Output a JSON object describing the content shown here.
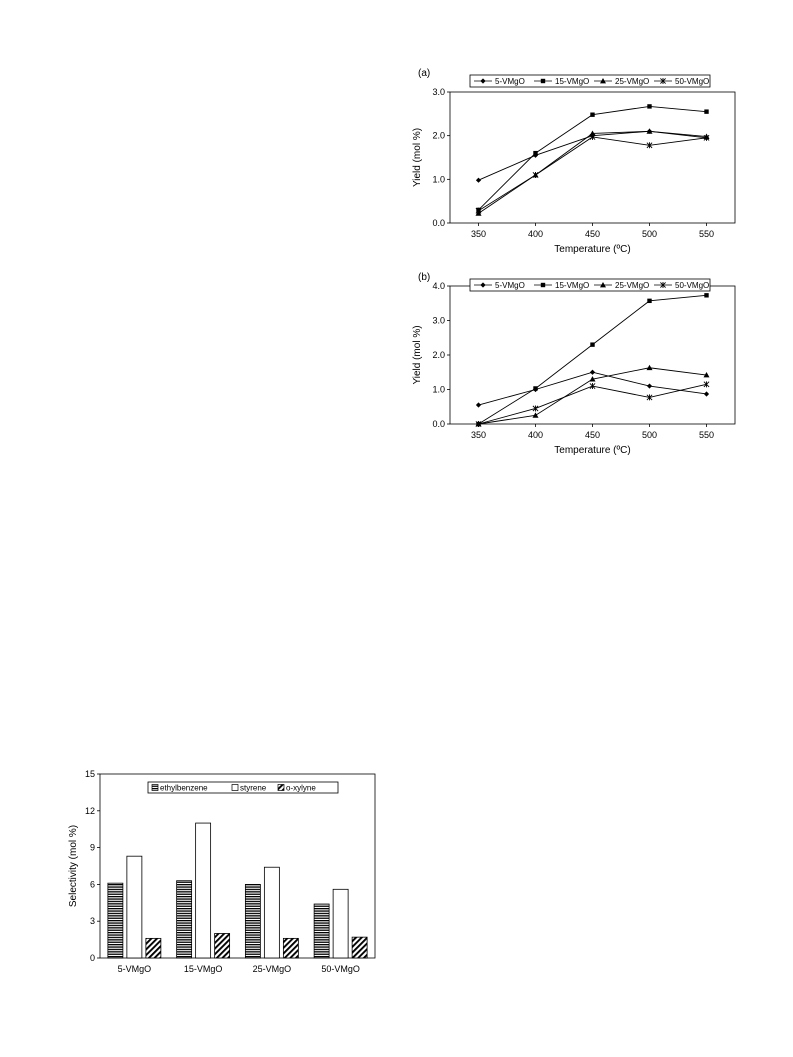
{
  "chart_data": [
    {
      "type": "line",
      "panel_label": "(a)",
      "xlabel": "Temperature (ºC)",
      "ylabel": "Yield (mol %)",
      "x": [
        350,
        400,
        450,
        500,
        550
      ],
      "x_ticks": [
        "350",
        "400",
        "450",
        "500",
        "550"
      ],
      "y_ticks": [
        "0.0",
        "1.0",
        "2.0",
        "3.0"
      ],
      "ylim": [
        0,
        3.0
      ],
      "legend_position": "top",
      "series": [
        {
          "name": "5-VMgO",
          "marker": "diamond",
          "values": [
            0.98,
            1.55,
            2.0,
            2.1,
            1.95
          ]
        },
        {
          "name": "15-VMgO",
          "marker": "square",
          "values": [
            0.3,
            1.6,
            2.48,
            2.67,
            2.55
          ]
        },
        {
          "name": "25-VMgO",
          "marker": "triangle",
          "values": [
            0.22,
            1.1,
            2.05,
            2.1,
            1.98
          ]
        },
        {
          "name": "50-VMgO",
          "marker": "star",
          "values": [
            0.28,
            1.1,
            1.97,
            1.78,
            1.95
          ]
        }
      ]
    },
    {
      "type": "line",
      "panel_label": "(b)",
      "xlabel": "Temperature (ºC)",
      "ylabel": "Yield (mol %)",
      "x": [
        350,
        400,
        450,
        500,
        550
      ],
      "x_ticks": [
        "350",
        "400",
        "450",
        "500",
        "550"
      ],
      "y_ticks": [
        "0.0",
        "1.0",
        "2.0",
        "3.0",
        "4.0"
      ],
      "ylim": [
        0,
        4.0
      ],
      "legend_position": "top",
      "series": [
        {
          "name": "5-VMgO",
          "marker": "diamond",
          "values": [
            0.55,
            1.0,
            1.5,
            1.1,
            0.87
          ]
        },
        {
          "name": "15-VMgO",
          "marker": "square",
          "values": [
            0.0,
            1.03,
            2.3,
            3.57,
            3.73
          ]
        },
        {
          "name": "25-VMgO",
          "marker": "triangle",
          "values": [
            0.0,
            0.25,
            1.3,
            1.63,
            1.42
          ]
        },
        {
          "name": "50-VMgO",
          "marker": "star",
          "values": [
            0.0,
            0.45,
            1.1,
            0.77,
            1.15
          ]
        }
      ]
    },
    {
      "type": "bar",
      "ylabel": "Selectivity (mol %)",
      "categories": [
        "5-VMgO",
        "15-VMgO",
        "25-VMgO",
        "50-VMgO"
      ],
      "y_ticks": [
        "0",
        "3",
        "6",
        "9",
        "12",
        "15"
      ],
      "ylim": [
        0,
        15
      ],
      "legend_position": "top",
      "series": [
        {
          "name": "ethylbenzene",
          "pattern": "horizontal-stripes",
          "values": [
            6.1,
            6.3,
            6.0,
            4.4
          ]
        },
        {
          "name": "styrene",
          "pattern": "white",
          "values": [
            8.3,
            11.0,
            7.4,
            5.6
          ]
        },
        {
          "name": "o-xylyne",
          "pattern": "diagonal-hatch",
          "values": [
            1.6,
            2.0,
            1.6,
            1.7
          ]
        }
      ]
    }
  ]
}
